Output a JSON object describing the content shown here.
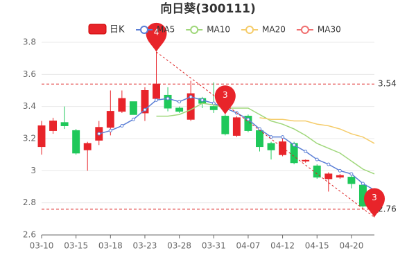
{
  "chart_data": {
    "type": "candlestick",
    "title": "向日葵(300111)",
    "categories": [
      "03-10",
      null,
      null,
      "03-15",
      null,
      null,
      "03-18",
      null,
      null,
      "03-23",
      null,
      null,
      "03-28",
      null,
      null,
      "03-31",
      null,
      null,
      "04-07",
      null,
      null,
      "04-12",
      null,
      null,
      "04-15",
      null,
      null,
      "04-20",
      null,
      null
    ],
    "candle_name": "日K",
    "up_color": "#e8242a",
    "down_color": "#1fc85a",
    "open": [
      3.15,
      3.25,
      3.3,
      3.25,
      3.13,
      3.19,
      3.27,
      3.37,
      3.43,
      3.36,
      3.45,
      3.47,
      3.39,
      3.32,
      3.45,
      3.4,
      3.34,
      3.22,
      3.34,
      3.25,
      3.17,
      3.1,
      3.17,
      3.06,
      3.03,
      2.95,
      2.96,
      2.96,
      2.91,
      2.74
    ],
    "close": [
      3.28,
      3.31,
      3.28,
      3.11,
      3.17,
      3.27,
      3.37,
      3.45,
      3.35,
      3.5,
      3.54,
      3.39,
      3.37,
      3.48,
      3.42,
      3.38,
      3.23,
      3.33,
      3.25,
      3.15,
      3.13,
      3.18,
      3.05,
      3.065,
      2.96,
      2.98,
      2.97,
      2.92,
      2.78,
      2.76
    ],
    "high": [
      3.31,
      3.33,
      3.4,
      3.26,
      3.18,
      3.31,
      3.5,
      3.5,
      3.43,
      3.52,
      3.74,
      3.52,
      3.4,
      3.56,
      3.46,
      3.55,
      3.35,
      3.34,
      3.35,
      3.26,
      3.18,
      3.2,
      3.18,
      3.07,
      3.04,
      2.99,
      2.98,
      2.97,
      2.92,
      2.78
    ],
    "low": [
      3.1,
      3.23,
      3.26,
      3.1,
      3.0,
      3.16,
      3.22,
      3.36,
      3.35,
      3.31,
      3.44,
      3.37,
      3.36,
      3.31,
      3.39,
      3.36,
      3.22,
      3.21,
      3.24,
      3.12,
      3.07,
      3.09,
      3.04,
      3.05,
      2.95,
      2.87,
      2.95,
      2.89,
      2.77,
      2.71
    ],
    "series": [
      {
        "name": "MA5",
        "color": "#5b7fd6",
        "values": [
          null,
          null,
          null,
          null,
          null,
          3.23,
          3.25,
          3.28,
          3.32,
          3.38,
          3.44,
          3.45,
          3.43,
          3.46,
          3.44,
          3.42,
          3.39,
          3.36,
          3.32,
          3.26,
          3.21,
          3.21,
          3.16,
          3.12,
          3.07,
          3.04,
          3.0,
          2.98,
          2.92,
          2.88
        ]
      },
      {
        "name": "MA10",
        "color": "#9fd77a",
        "values": [
          null,
          null,
          null,
          null,
          null,
          null,
          null,
          null,
          null,
          null,
          3.34,
          3.34,
          3.35,
          3.38,
          3.42,
          3.41,
          3.39,
          3.39,
          3.39,
          3.35,
          3.31,
          3.29,
          3.26,
          3.22,
          3.17,
          3.14,
          3.11,
          3.06,
          3.01,
          2.98
        ]
      },
      {
        "name": "MA20",
        "color": "#f5cc6a",
        "values": [
          null,
          null,
          null,
          null,
          null,
          null,
          null,
          null,
          null,
          null,
          null,
          null,
          null,
          null,
          null,
          null,
          null,
          null,
          null,
          3.33,
          3.32,
          3.32,
          3.31,
          3.31,
          3.29,
          3.28,
          3.26,
          3.23,
          3.21,
          3.17
        ]
      },
      {
        "name": "MA30",
        "color": "#f07070",
        "values": [
          null,
          null,
          null,
          null,
          null,
          null,
          null,
          null,
          null,
          null,
          null,
          null,
          null,
          null,
          null,
          null,
          null,
          null,
          null,
          null,
          null,
          null,
          null,
          null,
          null,
          null,
          null,
          null,
          null,
          null
        ]
      }
    ],
    "ylim": [
      2.6,
      3.8
    ],
    "yticks": [
      2.6,
      2.8,
      3,
      3.2,
      3.4,
      3.6,
      3.8
    ],
    "grid": true,
    "reference_lines": [
      3.54,
      2.76
    ],
    "markers": [
      {
        "label": "4",
        "category": 10,
        "value": 3.74
      },
      {
        "label": "3",
        "category": 16,
        "value": 3.35
      },
      {
        "label": "3",
        "category": 29,
        "value": 2.71
      }
    ]
  }
}
